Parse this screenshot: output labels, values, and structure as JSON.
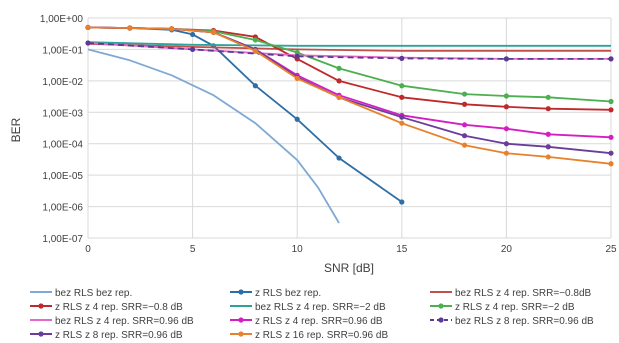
{
  "chart_data": {
    "type": "line",
    "title": "",
    "xlabel": "SNR [dB]",
    "ylabel": "BER",
    "xlim": [
      0,
      25
    ],
    "ylim": [
      1e-07,
      1
    ],
    "y_scale": "log",
    "grid": true,
    "legend_position": "bottom",
    "x_ticks": [
      "0",
      "5",
      "10",
      "15",
      "20",
      "25"
    ],
    "y_ticks": [
      "1,00E+00",
      "1,00E-01",
      "1,00E-02",
      "1,00E-03",
      "1,00E-04",
      "1,00E-05",
      "1,00E-06",
      "1,00E-07"
    ],
    "series": [
      {
        "name": "bez RLS bez rep.",
        "color": "#7fa9d4",
        "marker": "none",
        "dash": false,
        "x": [
          0,
          2,
          4,
          6,
          8,
          10,
          11,
          12
        ],
        "y": [
          0.1,
          0.045,
          0.015,
          0.0035,
          0.00045,
          3e-05,
          4e-06,
          3e-07
        ]
      },
      {
        "name": "z RLS bez rep.",
        "color": "#2e6ea6",
        "marker": "dot",
        "dash": false,
        "x": [
          0,
          2,
          4,
          5,
          6,
          8,
          10,
          12,
          15
        ],
        "y": [
          0.5,
          0.48,
          0.42,
          0.3,
          0.13,
          0.007,
          0.0006,
          3.5e-05,
          1.4e-06
        ]
      },
      {
        "name": "bez RLS z 4 rep. SRR=−0.8dB",
        "color": "#c0504d",
        "marker": "none",
        "dash": false,
        "x": [
          0,
          5,
          10,
          15,
          20,
          25
        ],
        "y": [
          0.15,
          0.12,
          0.1,
          0.09,
          0.09,
          0.09
        ]
      },
      {
        "name": "z RLS z 4 rep. SRR=−0.8 dB",
        "color": "#c0292b",
        "marker": "dot",
        "dash": false,
        "x": [
          0,
          2,
          4,
          6,
          8,
          10,
          12,
          15,
          18,
          20,
          22,
          25
        ],
        "y": [
          0.5,
          0.48,
          0.45,
          0.4,
          0.25,
          0.05,
          0.01,
          0.003,
          0.0018,
          0.0015,
          0.0013,
          0.0012
        ]
      },
      {
        "name": "bez RLS z 4 rep. SRR=−2 dB",
        "color": "#2aa49a",
        "marker": "none",
        "dash": false,
        "x": [
          0,
          5,
          10,
          15,
          20,
          25
        ],
        "y": [
          0.17,
          0.14,
          0.13,
          0.13,
          0.13,
          0.13
        ]
      },
      {
        "name": "z RLS z 4 rep. SRR=−2 dB",
        "color": "#4caf50",
        "marker": "dot",
        "dash": false,
        "x": [
          0,
          2,
          4,
          6,
          8,
          10,
          12,
          15,
          18,
          20,
          22,
          25
        ],
        "y": [
          0.5,
          0.48,
          0.45,
          0.38,
          0.2,
          0.08,
          0.025,
          0.007,
          0.0038,
          0.0033,
          0.003,
          0.0022
        ]
      },
      {
        "name": "bez RLS z 4 rep. SRR=0.96 dB",
        "color": "#e667c8",
        "marker": "none",
        "dash": false,
        "x": [
          0,
          5,
          10,
          15,
          20,
          25
        ],
        "y": [
          0.16,
          0.1,
          0.065,
          0.055,
          0.05,
          0.05
        ]
      },
      {
        "name": "z RLS z 4 rep. SRR=0.96 dB",
        "color": "#d61dc4",
        "marker": "dot",
        "dash": false,
        "x": [
          0,
          2,
          4,
          6,
          8,
          10,
          12,
          15,
          18,
          20,
          22,
          25
        ],
        "y": [
          0.5,
          0.48,
          0.45,
          0.35,
          0.1,
          0.015,
          0.0035,
          0.0008,
          0.0004,
          0.0003,
          0.0002,
          0.00016
        ]
      },
      {
        "name": "bez RLS z 8 rep. SRR=0.96 dB",
        "color": "#5b3a96",
        "marker": "dot",
        "dash": true,
        "x": [
          0,
          5,
          10,
          15,
          20,
          25
        ],
        "y": [
          0.16,
          0.1,
          0.06,
          0.052,
          0.05,
          0.05
        ]
      },
      {
        "name": "z RLS z 8 rep. SRR=0.96 dB",
        "color": "#6a3d9a",
        "marker": "dot",
        "dash": false,
        "x": [
          0,
          2,
          4,
          6,
          8,
          10,
          12,
          15,
          18,
          20,
          22,
          25
        ],
        "y": [
          0.5,
          0.48,
          0.45,
          0.35,
          0.1,
          0.013,
          0.003,
          0.0007,
          0.00018,
          0.0001,
          8e-05,
          5e-05
        ]
      },
      {
        "name": "z RLS z 16 rep. SRR=0.96 dB",
        "color": "#e8812d",
        "marker": "dot",
        "dash": false,
        "x": [
          0,
          2,
          4,
          6,
          8,
          10,
          12,
          15,
          18,
          20,
          22,
          25
        ],
        "y": [
          0.5,
          0.48,
          0.45,
          0.35,
          0.09,
          0.012,
          0.003,
          0.00045,
          9e-05,
          5e-05,
          3.8e-05,
          2.3e-05
        ]
      }
    ]
  }
}
